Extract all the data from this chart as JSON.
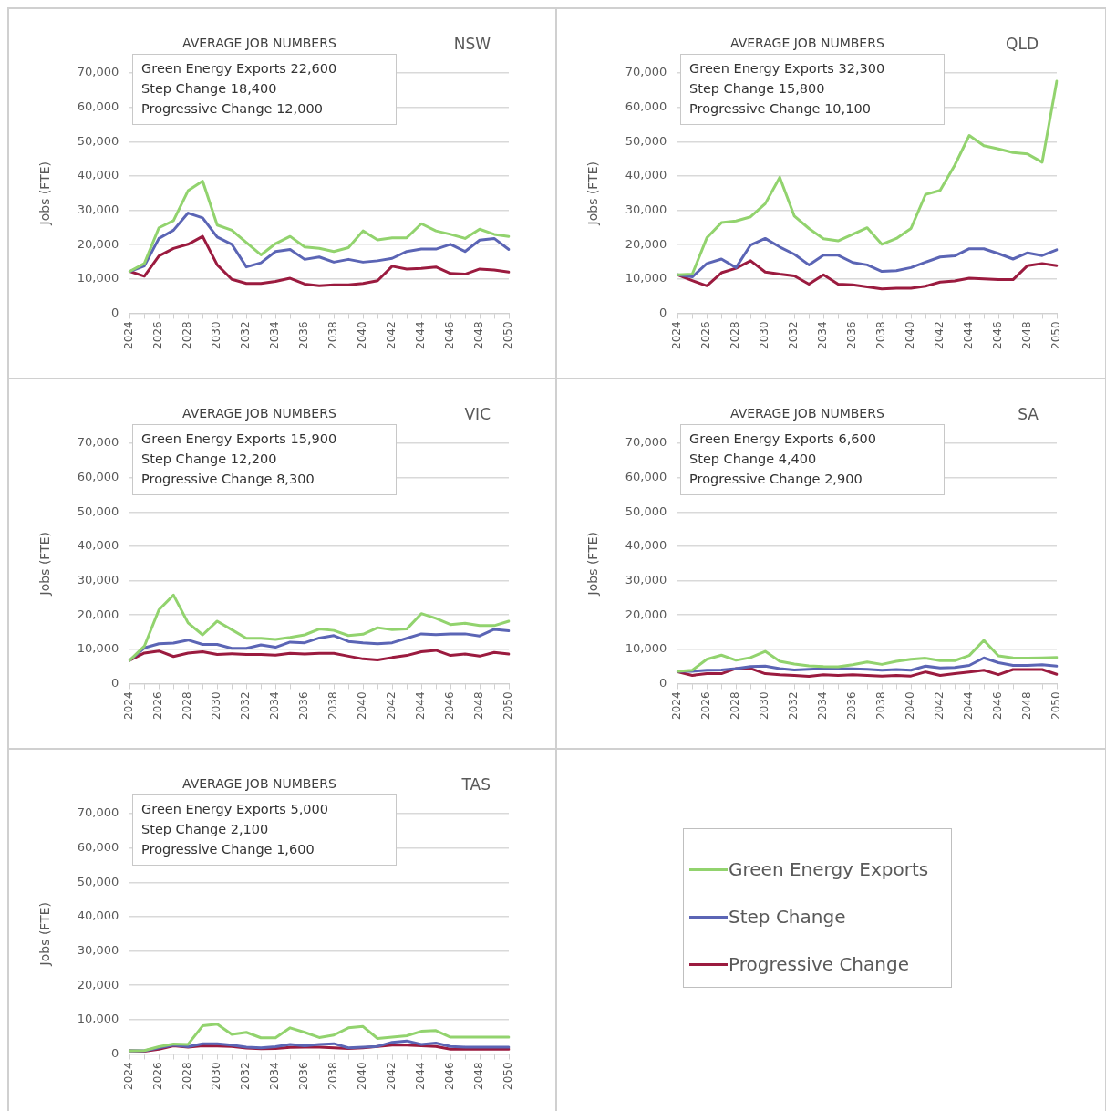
{
  "chart_data": [
    {
      "type": "line",
      "title": "AVERAGE JOB NUMBERS",
      "subtitle": "NSW",
      "ylabel": "Jobs (FTE)",
      "annotations": [
        "Green Energy Exports 22,600",
        "Step Change 18,400",
        "Progressive Change 12,000"
      ],
      "categories": [
        "2024",
        null,
        "2026",
        null,
        "2028",
        null,
        "2030",
        null,
        "2032",
        null,
        "2034",
        null,
        "2036",
        null,
        "2038",
        null,
        "2040",
        null,
        "2042",
        null,
        "2044",
        null,
        "2046",
        null,
        "2048",
        null,
        "2050"
      ],
      "ylim": [
        0,
        70000
      ],
      "yticks": [
        {
          "value": 0,
          "label": "0"
        },
        {
          "value": 10000,
          "label": "10,000"
        },
        {
          "value": 20000,
          "label": "20,000"
        },
        {
          "value": 30000,
          "label": "30,000"
        },
        {
          "value": 40000,
          "label": "40,000"
        },
        {
          "value": 50000,
          "label": "50,000"
        },
        {
          "value": 60000,
          "label": "60,000"
        },
        {
          "value": 70000,
          "label": "70,000"
        }
      ],
      "grid": "y",
      "marker": "none",
      "legend": "bottom right",
      "series": [
        {
          "name": "Green Energy Exports",
          "color": "#92d36e",
          "values": [
            12200,
            14500,
            24900,
            27000,
            35700,
            38500,
            25700,
            24200,
            20600,
            17000,
            20300,
            22400,
            19300,
            18900,
            18000,
            19100,
            24000,
            21400,
            22000,
            22000,
            26100,
            24000,
            23000,
            21800,
            24500,
            23000,
            22400
          ]
        },
        {
          "name": "Step Change",
          "color": "#5b65b5",
          "values": [
            12200,
            13800,
            21800,
            24200,
            29200,
            27800,
            22200,
            20100,
            13500,
            14700,
            18000,
            18600,
            15700,
            16400,
            14900,
            15700,
            14900,
            15300,
            16000,
            18000,
            18700,
            18700,
            20100,
            18000,
            21300,
            21800,
            18600
          ]
        },
        {
          "name": "Progressive Change",
          "color": "#9b1b3f",
          "values": [
            12200,
            10800,
            16700,
            18900,
            20100,
            22400,
            14100,
            9900,
            8700,
            8700,
            9300,
            10200,
            8500,
            8000,
            8300,
            8300,
            8700,
            9500,
            13700,
            12900,
            13100,
            13500,
            11600,
            11400,
            12900,
            12600,
            12000
          ]
        }
      ]
    },
    {
      "type": "line",
      "title": "AVERAGE JOB NUMBERS",
      "subtitle": "QLD",
      "ylabel": "Jobs (FTE)",
      "annotations": [
        "Green Energy Exports 32,300",
        "Step Change 15,800",
        "Progressive Change 10,100"
      ],
      "categories": [
        "2024",
        null,
        "2026",
        null,
        "2028",
        null,
        "2030",
        null,
        "2032",
        null,
        "2034",
        null,
        "2036",
        null,
        "2038",
        null,
        "2040",
        null,
        "2042",
        null,
        "2044",
        null,
        "2046",
        null,
        "2048",
        null,
        "2050"
      ],
      "ylim": [
        0,
        70000
      ],
      "yticks": [
        {
          "value": 0,
          "label": "0"
        },
        {
          "value": 10000,
          "label": "10,000"
        },
        {
          "value": 20000,
          "label": "20,000"
        },
        {
          "value": 30000,
          "label": "30,000"
        },
        {
          "value": 40000,
          "label": "40,000"
        },
        {
          "value": 50000,
          "label": "50,000"
        },
        {
          "value": 60000,
          "label": "60,000"
        },
        {
          "value": 70000,
          "label": "70,000"
        }
      ],
      "grid": "y",
      "marker": "none",
      "series": [
        {
          "color": "#92d36e",
          "values": [
            11200,
            11400,
            22000,
            26400,
            26900,
            28100,
            31900,
            39600,
            28300,
            24700,
            21700,
            21100,
            23000,
            24900,
            20100,
            21800,
            24700,
            34600,
            35800,
            43100,
            51800,
            48800,
            47900,
            46800,
            46400,
            44000,
            67600
          ]
        },
        {
          "color": "#5b65b5",
          "values": [
            11200,
            10600,
            14500,
            15800,
            13300,
            19900,
            21800,
            19300,
            17200,
            14100,
            16900,
            16900,
            14800,
            14100,
            12200,
            12400,
            13300,
            14900,
            16400,
            16700,
            18800,
            18800,
            17400,
            15800,
            17600,
            16800,
            18500
          ]
        },
        {
          "color": "#9b1b3f",
          "values": [
            11200,
            9500,
            8000,
            11800,
            13100,
            15300,
            12000,
            11400,
            10900,
            8500,
            11200,
            8500,
            8300,
            7700,
            7100,
            7300,
            7300,
            7900,
            9100,
            9400,
            10200,
            10000,
            9800,
            9800,
            13900,
            14500,
            13900
          ]
        }
      ]
    },
    {
      "type": "line",
      "title": "AVERAGE JOB NUMBERS",
      "subtitle": "VIC",
      "ylabel": "Jobs (FTE)",
      "annotations": [
        "Green Energy Exports 15,900",
        "Step Change 12,200",
        "Progressive Change 8,300"
      ],
      "categories": [
        "2024",
        null,
        "2026",
        null,
        "2028",
        null,
        "2030",
        null,
        "2032",
        null,
        "2034",
        null,
        "2036",
        null,
        "2038",
        null,
        "2040",
        null,
        "2042",
        null,
        "2044",
        null,
        "2046",
        null,
        "2048",
        null,
        "2050"
      ],
      "ylim": [
        0,
        70000
      ],
      "yticks": [
        {
          "value": 0,
          "label": "0"
        },
        {
          "value": 10000,
          "label": "10,000"
        },
        {
          "value": 20000,
          "label": "20,000"
        },
        {
          "value": 30000,
          "label": "30,000"
        },
        {
          "value": 40000,
          "label": "40,000"
        },
        {
          "value": 50000,
          "label": "50,000"
        },
        {
          "value": 60000,
          "label": "60,000"
        },
        {
          "value": 70000,
          "label": "70,000"
        }
      ],
      "grid": "y",
      "marker": "none",
      "series": [
        {
          "color": "#92d36e",
          "values": [
            6800,
            10900,
            21500,
            25800,
            17700,
            14200,
            18200,
            15700,
            13200,
            13200,
            12900,
            13500,
            14200,
            15900,
            15500,
            14000,
            14400,
            16300,
            15700,
            15900,
            20400,
            19000,
            17200,
            17600,
            16900,
            16900,
            18200
          ]
        },
        {
          "color": "#5b65b5",
          "values": [
            6800,
            10400,
            11600,
            11800,
            12700,
            11400,
            11400,
            10300,
            10300,
            11300,
            10600,
            12100,
            11900,
            13300,
            14000,
            12300,
            11900,
            11600,
            11900,
            13200,
            14500,
            14300,
            14500,
            14500,
            13900,
            15800,
            15400
          ]
        },
        {
          "color": "#9b1b3f",
          "values": [
            6800,
            8900,
            9500,
            7900,
            8900,
            9300,
            8500,
            8700,
            8500,
            8500,
            8300,
            8800,
            8600,
            8800,
            8800,
            8000,
            7200,
            6900,
            7600,
            8200,
            9300,
            9700,
            8200,
            8600,
            8000,
            9100,
            8600
          ]
        }
      ]
    },
    {
      "type": "line",
      "title": "AVERAGE JOB NUMBERS",
      "subtitle": "SA",
      "ylabel": "Jobs (FTE)",
      "annotations": [
        "Green Energy Exports 6,600",
        "Step Change 4,400",
        "Progressive Change 2,900"
      ],
      "categories": [
        "2024",
        null,
        "2026",
        null,
        "2028",
        null,
        "2030",
        null,
        "2032",
        null,
        "2034",
        null,
        "2036",
        null,
        "2038",
        null,
        "2040",
        null,
        "2042",
        null,
        "2044",
        null,
        "2046",
        null,
        "2048",
        null,
        "2050"
      ],
      "ylim": [
        0,
        70000
      ],
      "yticks": [
        {
          "value": 0,
          "label": "0"
        },
        {
          "value": 10000,
          "label": "10,000"
        },
        {
          "value": 20000,
          "label": "20,000"
        },
        {
          "value": 30000,
          "label": "30,000"
        },
        {
          "value": 40000,
          "label": "40,000"
        },
        {
          "value": 50000,
          "label": "50,000"
        },
        {
          "value": 60000,
          "label": "60,000"
        },
        {
          "value": 70000,
          "label": "70,000"
        }
      ],
      "grid": "y",
      "marker": "none",
      "series": [
        {
          "color": "#92d36e",
          "values": [
            3600,
            3900,
            7100,
            8300,
            6800,
            7600,
            9400,
            6500,
            5700,
            5200,
            5000,
            4900,
            5500,
            6300,
            5600,
            6500,
            7100,
            7400,
            6700,
            6700,
            8200,
            12600,
            8100,
            7500,
            7400,
            7500,
            7600
          ]
        },
        {
          "color": "#5b65b5",
          "values": [
            3600,
            3600,
            3900,
            4000,
            4400,
            5000,
            5100,
            4400,
            4000,
            4200,
            4400,
            4400,
            4300,
            4200,
            3900,
            4100,
            3900,
            5100,
            4600,
            4700,
            5300,
            7500,
            6100,
            5300,
            5300,
            5500,
            5100
          ]
        },
        {
          "color": "#9b1b3f",
          "values": [
            3400,
            2400,
            2900,
            2900,
            4400,
            4400,
            2900,
            2600,
            2400,
            2100,
            2600,
            2400,
            2600,
            2400,
            2200,
            2400,
            2200,
            3400,
            2400,
            2900,
            3400,
            3900,
            2600,
            4100,
            4100,
            4100,
            2700
          ]
        }
      ]
    },
    {
      "type": "line",
      "title": "AVERAGE JOB NUMBERS",
      "subtitle": "TAS",
      "ylabel": "Jobs (FTE)",
      "annotations": [
        "Green Energy Exports 5,000",
        "Step Change 2,100",
        "Progressive Change 1,600"
      ],
      "categories": [
        "2024",
        null,
        "2026",
        null,
        "2028",
        null,
        "2030",
        null,
        "2032",
        null,
        "2034",
        null,
        "2036",
        null,
        "2038",
        null,
        "2040",
        null,
        "2042",
        null,
        "2044",
        null,
        "2046",
        null,
        "2048",
        null,
        "2050"
      ],
      "ylim": [
        0,
        70000
      ],
      "yticks": [
        {
          "value": 0,
          "label": "0"
        },
        {
          "value": 10000,
          "label": "10,000"
        },
        {
          "value": 20000,
          "label": "20,000"
        },
        {
          "value": 30000,
          "label": "30,000"
        },
        {
          "value": 40000,
          "label": "40,000"
        },
        {
          "value": 50000,
          "label": "50,000"
        },
        {
          "value": 60000,
          "label": "60,000"
        },
        {
          "value": 70000,
          "label": "70,000"
        }
      ],
      "grid": "y",
      "marker": "none",
      "series": [
        {
          "color": "#92d36e",
          "values": [
            900,
            1000,
            2100,
            2900,
            2800,
            8200,
            8700,
            5700,
            6300,
            4700,
            4700,
            7600,
            6300,
            4800,
            5500,
            7600,
            8000,
            4500,
            4900,
            5300,
            6600,
            6800,
            4900,
            4900,
            4900,
            4900,
            4900
          ]
        },
        {
          "color": "#5b65b5",
          "values": [
            900,
            900,
            1800,
            2600,
            2100,
            3000,
            3000,
            2600,
            2000,
            1800,
            2100,
            2800,
            2400,
            2800,
            3000,
            1800,
            2000,
            2200,
            3400,
            3800,
            2800,
            3200,
            2200,
            2000,
            2000,
            2000,
            2000
          ]
        },
        {
          "color": "#9b1b3f",
          "values": [
            900,
            800,
            1400,
            2400,
            2000,
            2400,
            2300,
            2200,
            1700,
            1500,
            1600,
            1900,
            2000,
            2000,
            1800,
            1600,
            1800,
            2200,
            2600,
            2600,
            2400,
            2200,
            1400,
            1400,
            1400,
            1400,
            1400
          ]
        }
      ]
    }
  ]
}
